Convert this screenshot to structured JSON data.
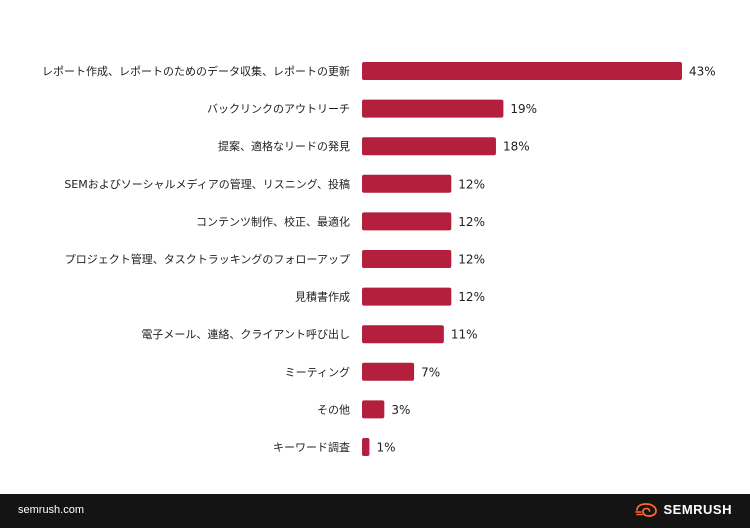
{
  "chart_data": {
    "type": "bar",
    "orientation": "horizontal",
    "categories": [
      "レポート作成、レポートのためのデータ収集、レポートの更新",
      "バックリンクのアウトリーチ",
      "提案、適格なリードの発見",
      "SEMおよびソーシャルメディアの管理、リスニング、投稿",
      "コンテンツ制作、校正、最適化",
      "プロジェクト管理、タスクトラッキングのフォローアップ",
      "見積書作成",
      "電子メール、連絡、クライアント呼び出し",
      "ミーティング",
      "その他",
      "キーワード調査"
    ],
    "values": [
      43,
      19,
      18,
      12,
      12,
      12,
      12,
      11,
      7,
      3,
      1
    ],
    "value_labels": [
      "43%",
      "19%",
      "18%",
      "12%",
      "12%",
      "12%",
      "12%",
      "11%",
      "7%",
      "3%",
      "1%"
    ],
    "unit": "%",
    "xlim": [
      0,
      43
    ],
    "grid": false,
    "bar_color": "#b31f3c"
  },
  "footer": {
    "site": "semrush.com",
    "brand": "SEMRUSH",
    "brand_icon": "semrush-fire-icon",
    "brand_icon_color": "#ff642d"
  }
}
